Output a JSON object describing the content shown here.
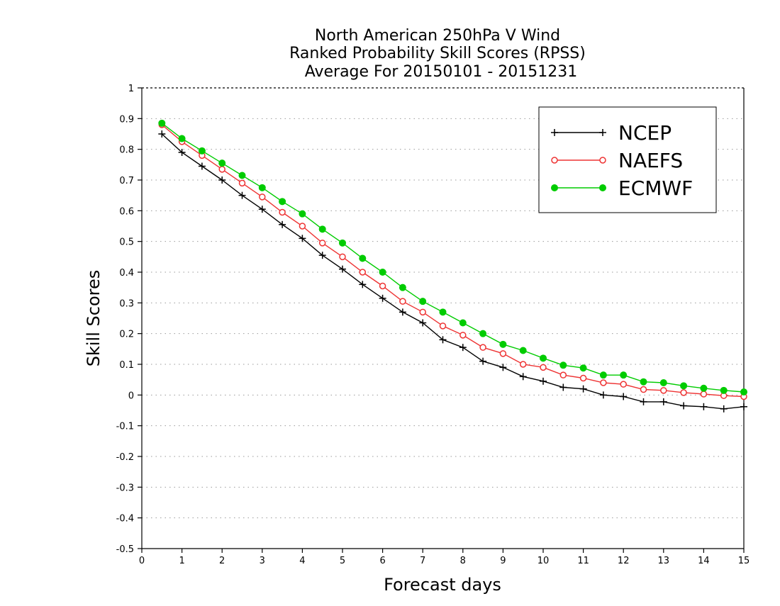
{
  "chart_data": {
    "type": "line",
    "title": [
      "North American 250hPa V Wind",
      "Ranked Probability Skill Scores (RPSS)",
      "Average For 20150101 - 20151231"
    ],
    "xlabel": "Forecast days",
    "ylabel": "Skill Scores",
    "xlim": [
      0,
      15
    ],
    "ylim": [
      -0.5,
      1
    ],
    "xticks": [
      "0",
      "1",
      "2",
      "3",
      "4",
      "5",
      "6",
      "7",
      "8",
      "9",
      "10",
      "11",
      "12",
      "13",
      "14",
      "15"
    ],
    "yticks": [
      "1",
      "0.9",
      "0.8",
      "0.7",
      "0.6",
      "0.5",
      "0.4",
      "0.3",
      "0.2",
      "0.1",
      "0",
      "-0.1",
      "-0.2",
      "-0.3",
      "-0.4",
      "-0.5"
    ],
    "grid": true,
    "legend_position": "top-right",
    "x": [
      0.5,
      1,
      1.5,
      2,
      2.5,
      3,
      3.5,
      4,
      4.5,
      5,
      5.5,
      6,
      6.5,
      7,
      7.5,
      8,
      8.5,
      9,
      9.5,
      10,
      10.5,
      11,
      11.5,
      12,
      12.5,
      13,
      13.5,
      14,
      14.5,
      15
    ],
    "series": [
      {
        "name": "NCEP",
        "color": "#000000",
        "marker": "plus",
        "values": [
          0.85,
          0.79,
          0.745,
          0.7,
          0.65,
          0.605,
          0.555,
          0.51,
          0.455,
          0.41,
          0.36,
          0.315,
          0.27,
          0.235,
          0.18,
          0.155,
          0.11,
          0.09,
          0.06,
          0.045,
          0.025,
          0.02,
          0.0,
          -0.005,
          -0.022,
          -0.022,
          -0.035,
          -0.038,
          -0.045,
          -0.038
        ]
      },
      {
        "name": "NAEFS",
        "color": "#ee3333",
        "marker": "open-circle",
        "values": [
          0.88,
          0.825,
          0.78,
          0.735,
          0.69,
          0.645,
          0.595,
          0.55,
          0.495,
          0.45,
          0.4,
          0.355,
          0.305,
          0.27,
          0.225,
          0.195,
          0.155,
          0.135,
          0.1,
          0.09,
          0.065,
          0.055,
          0.04,
          0.035,
          0.018,
          0.015,
          0.008,
          0.003,
          -0.002,
          -0.005
        ]
      },
      {
        "name": "ECMWF",
        "color": "#00cc00",
        "marker": "filled-circle",
        "values": [
          0.885,
          0.835,
          0.795,
          0.755,
          0.715,
          0.675,
          0.63,
          0.59,
          0.54,
          0.495,
          0.445,
          0.4,
          0.35,
          0.305,
          0.27,
          0.235,
          0.2,
          0.165,
          0.145,
          0.12,
          0.097,
          0.088,
          0.065,
          0.065,
          0.043,
          0.04,
          0.03,
          0.022,
          0.015,
          0.01
        ]
      }
    ]
  }
}
